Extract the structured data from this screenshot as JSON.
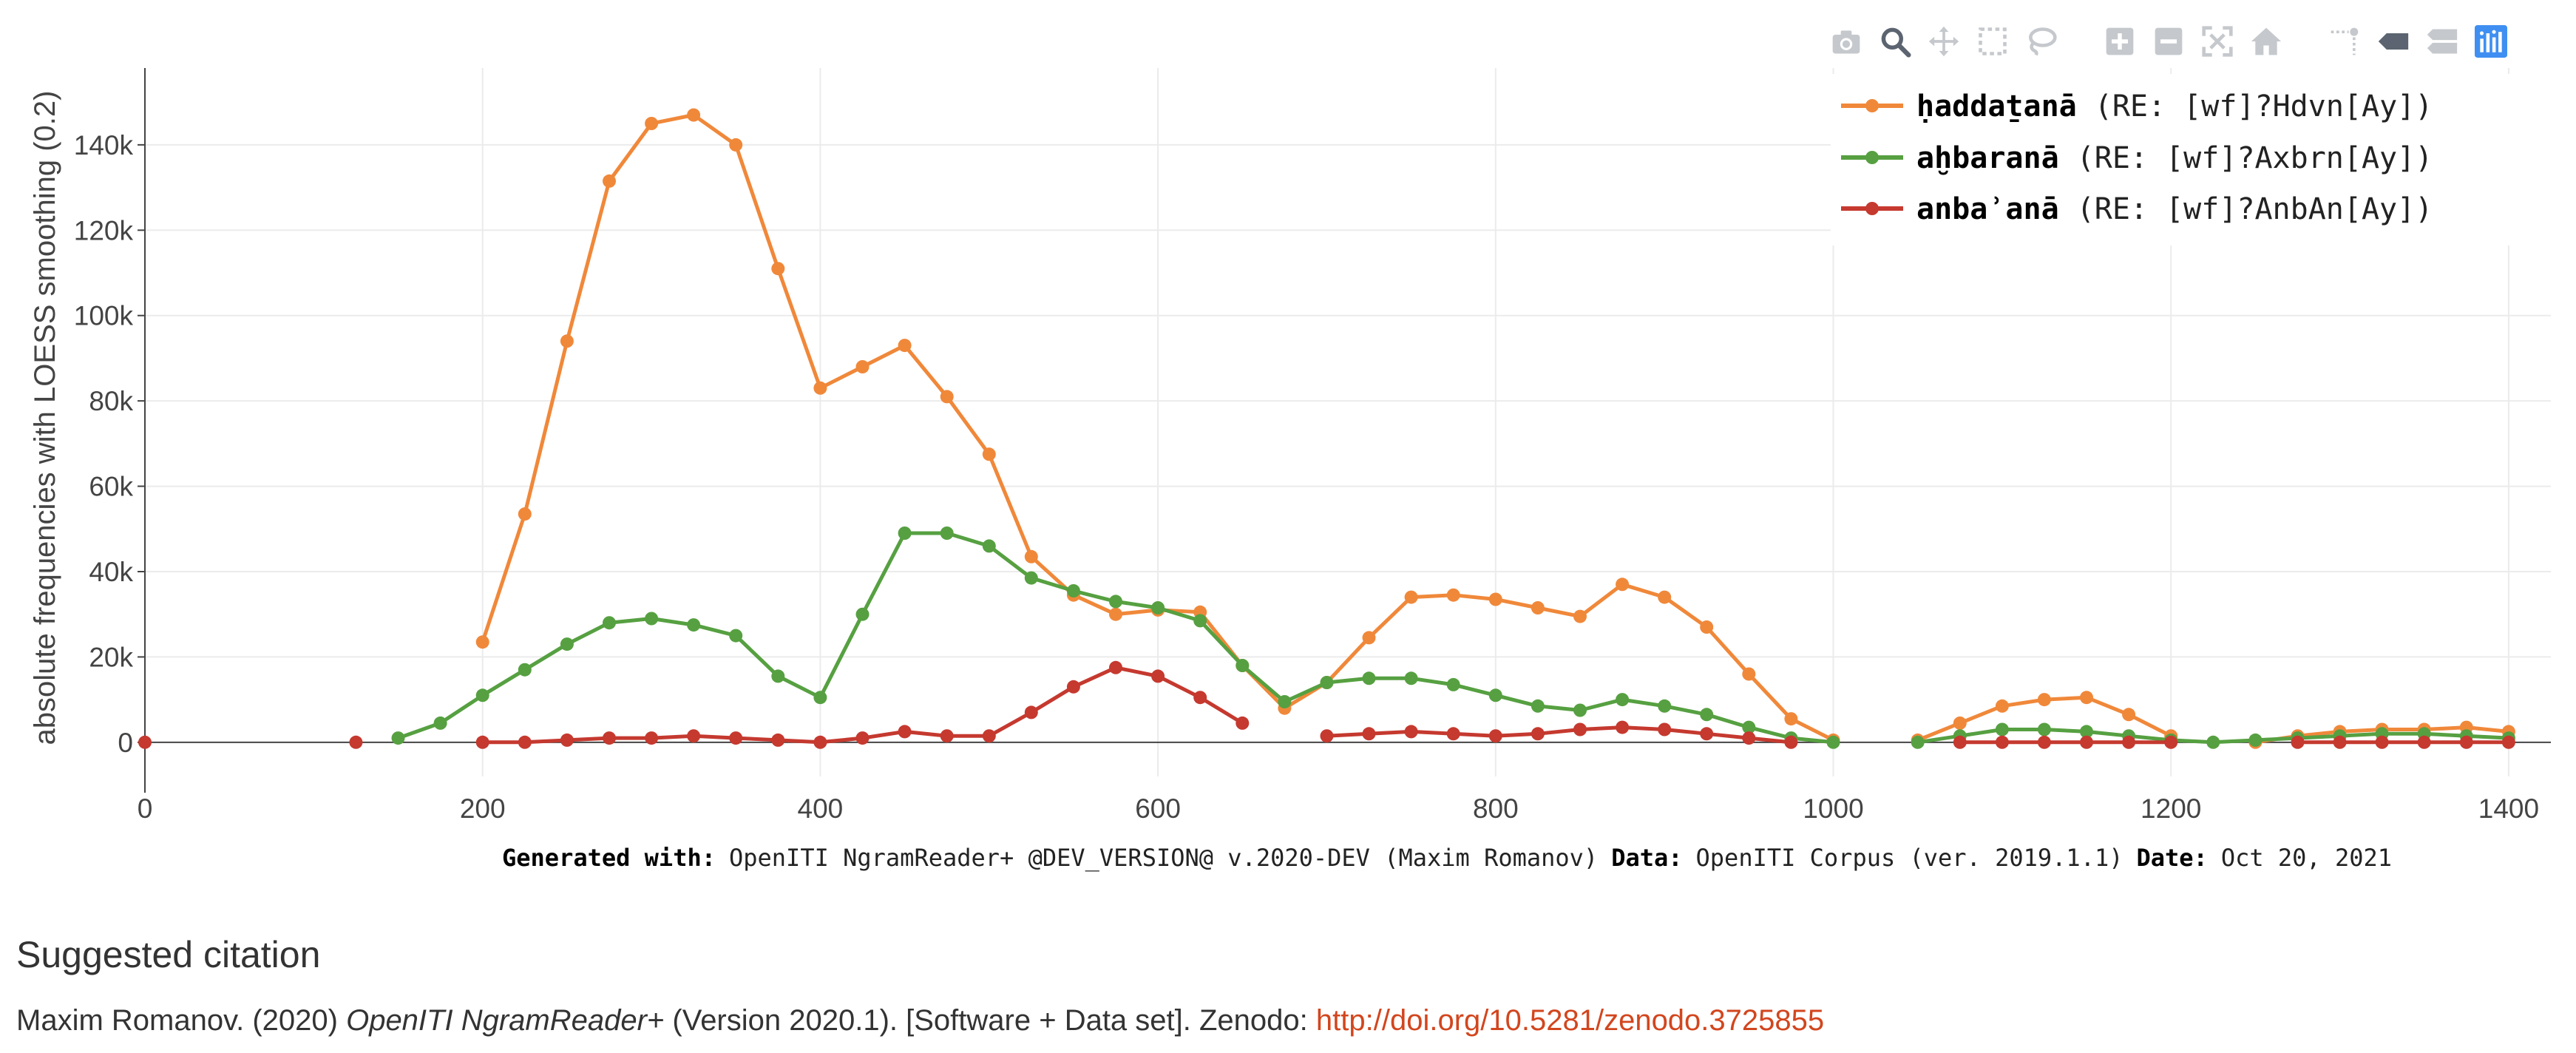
{
  "modebar": {
    "icons": [
      "camera-icon",
      "zoom-icon",
      "pan-icon",
      "box-select-icon",
      "lasso-select-icon",
      "zoom-in-icon",
      "zoom-out-icon",
      "autoscale-icon",
      "reset-axes-icon",
      "spike-lines-icon",
      "hover-closest-icon",
      "hover-compare-icon",
      "plotly-logo-icon"
    ],
    "active": "zoom-icon"
  },
  "chart_data": {
    "type": "line",
    "ylabel": "absolute frequencies with LOESS smoothing (0.2)",
    "xlabel": "",
    "xlim": [
      0,
      1425
    ],
    "ylim": [
      -8000,
      158000
    ],
    "x_ticks": [
      0,
      200,
      400,
      600,
      800,
      1000,
      1200,
      1400
    ],
    "x_tick_labels": [
      "0",
      "200",
      "400",
      "600",
      "800",
      "1000",
      "1200",
      "1400"
    ],
    "y_ticks": [
      0,
      20000,
      40000,
      60000,
      80000,
      100000,
      120000,
      140000
    ],
    "y_tick_labels": [
      "0",
      "20k",
      "40k",
      "60k",
      "80k",
      "100k",
      "120k",
      "140k"
    ],
    "grid": true,
    "legend_position": "top-right",
    "series": [
      {
        "name": "ḥaddaṯanā",
        "regex": "(RE: [wf]?Hdvn[Ay])",
        "color": "#f0883a",
        "points": [
          [
            200,
            23500
          ],
          [
            225,
            53500
          ],
          [
            250,
            94000
          ],
          [
            275,
            131500
          ],
          [
            300,
            145000
          ],
          [
            325,
            147000
          ],
          [
            350,
            140000
          ],
          [
            375,
            111000
          ],
          [
            400,
            83000
          ],
          [
            425,
            88000
          ],
          [
            450,
            93000
          ],
          [
            475,
            81000
          ],
          [
            500,
            67500
          ],
          [
            525,
            43500
          ],
          [
            550,
            34500
          ],
          [
            575,
            30000
          ],
          [
            600,
            31000
          ],
          [
            625,
            30500
          ],
          [
            650,
            18000
          ],
          [
            675,
            8000
          ],
          [
            700,
            14000
          ],
          [
            725,
            24500
          ],
          [
            750,
            34000
          ],
          [
            775,
            34500
          ],
          [
            800,
            33500
          ],
          [
            825,
            31500
          ],
          [
            850,
            29500
          ],
          [
            875,
            37000
          ],
          [
            900,
            34000
          ],
          [
            925,
            27000
          ],
          [
            950,
            16000
          ],
          [
            975,
            5500
          ],
          [
            1000,
            500
          ],
          null,
          [
            1050,
            500
          ],
          [
            1075,
            4500
          ],
          [
            1100,
            8500
          ],
          [
            1125,
            10000
          ],
          [
            1150,
            10500
          ],
          [
            1175,
            6500
          ],
          [
            1200,
            1500
          ],
          null,
          [
            1250,
            0
          ],
          [
            1275,
            1500
          ],
          [
            1300,
            2500
          ],
          [
            1325,
            3000
          ],
          [
            1350,
            3000
          ],
          [
            1375,
            3500
          ],
          [
            1400,
            2500
          ]
        ]
      },
      {
        "name": "aḫbaranā",
        "regex": "(RE: [wf]?Axbrn[Ay])",
        "color": "#56a041",
        "points": [
          [
            150,
            1000
          ],
          [
            175,
            4500
          ],
          [
            200,
            11000
          ],
          [
            225,
            17000
          ],
          [
            250,
            23000
          ],
          [
            275,
            28000
          ],
          [
            300,
            29000
          ],
          [
            325,
            27500
          ],
          [
            350,
            25000
          ],
          [
            375,
            15500
          ],
          [
            400,
            10500
          ],
          [
            425,
            30000
          ],
          [
            450,
            49000
          ],
          [
            475,
            49000
          ],
          [
            500,
            46000
          ],
          [
            525,
            38500
          ],
          [
            550,
            35500
          ],
          [
            575,
            33000
          ],
          [
            600,
            31500
          ],
          [
            625,
            28500
          ],
          [
            650,
            18000
          ],
          [
            675,
            9500
          ],
          [
            700,
            14000
          ],
          [
            725,
            15000
          ],
          [
            750,
            15000
          ],
          [
            775,
            13500
          ],
          [
            800,
            11000
          ],
          [
            825,
            8500
          ],
          [
            850,
            7500
          ],
          [
            875,
            10000
          ],
          [
            900,
            8500
          ],
          [
            925,
            6500
          ],
          [
            950,
            3500
          ],
          [
            975,
            1000
          ],
          [
            1000,
            0
          ],
          null,
          [
            1050,
            0
          ],
          [
            1075,
            1500
          ],
          [
            1100,
            3000
          ],
          [
            1125,
            3000
          ],
          [
            1150,
            2500
          ],
          [
            1175,
            1500
          ],
          [
            1200,
            500
          ],
          [
            1225,
            0
          ],
          [
            1250,
            500
          ],
          [
            1275,
            1000
          ],
          [
            1300,
            1500
          ],
          [
            1325,
            2000
          ],
          [
            1350,
            2000
          ],
          [
            1375,
            1500
          ],
          [
            1400,
            1000
          ]
        ]
      },
      {
        "name": "anbaʾanā",
        "regex": "(RE: [wf]?AnbAn[Ay])",
        "color": "#c5392f",
        "points": [
          [
            0,
            0
          ],
          null,
          [
            125,
            0
          ],
          null,
          [
            200,
            0
          ],
          [
            225,
            0
          ],
          [
            250,
            500
          ],
          [
            275,
            1000
          ],
          [
            300,
            1000
          ],
          [
            325,
            1500
          ],
          [
            350,
            1000
          ],
          [
            375,
            500
          ],
          [
            400,
            0
          ],
          [
            425,
            1000
          ],
          [
            450,
            2500
          ],
          [
            475,
            1500
          ],
          [
            500,
            1500
          ],
          [
            525,
            7000
          ],
          [
            550,
            13000
          ],
          [
            575,
            17500
          ],
          [
            600,
            15500
          ],
          [
            625,
            10500
          ],
          [
            650,
            4500
          ],
          null,
          [
            700,
            1500
          ],
          [
            725,
            2000
          ],
          [
            750,
            2500
          ],
          [
            775,
            2000
          ],
          [
            800,
            1500
          ],
          [
            825,
            2000
          ],
          [
            850,
            3000
          ],
          [
            875,
            3500
          ],
          [
            900,
            3000
          ],
          [
            925,
            2000
          ],
          [
            950,
            1000
          ],
          [
            975,
            0
          ],
          null,
          [
            1075,
            0
          ],
          [
            1100,
            0
          ],
          [
            1125,
            0
          ],
          [
            1150,
            0
          ],
          [
            1175,
            0
          ],
          [
            1200,
            0
          ],
          null,
          [
            1275,
            0
          ],
          [
            1300,
            0
          ],
          [
            1325,
            0
          ],
          [
            1350,
            0
          ],
          [
            1375,
            0
          ],
          [
            1400,
            0
          ]
        ]
      }
    ]
  },
  "footer": {
    "generated_label": "Generated with:",
    "generated_value": "OpenITI NgramReader+ @DEV_VERSION@ v.2020-DEV (Maxim Romanov)",
    "data_label": "Data:",
    "data_value": "OpenITI Corpus (ver. 2019.1.1)",
    "date_label": "Date:",
    "date_value": "Oct 20, 2021"
  },
  "citation": {
    "heading": "Suggested citation",
    "author": "Maxim Romanov. (2020) ",
    "title": "OpenITI NgramReader+",
    "rest": " (Version 2020.1). [Software + Data set]. Zenodo: ",
    "link": "http://doi.org/10.5281/zenodo.3725855"
  }
}
